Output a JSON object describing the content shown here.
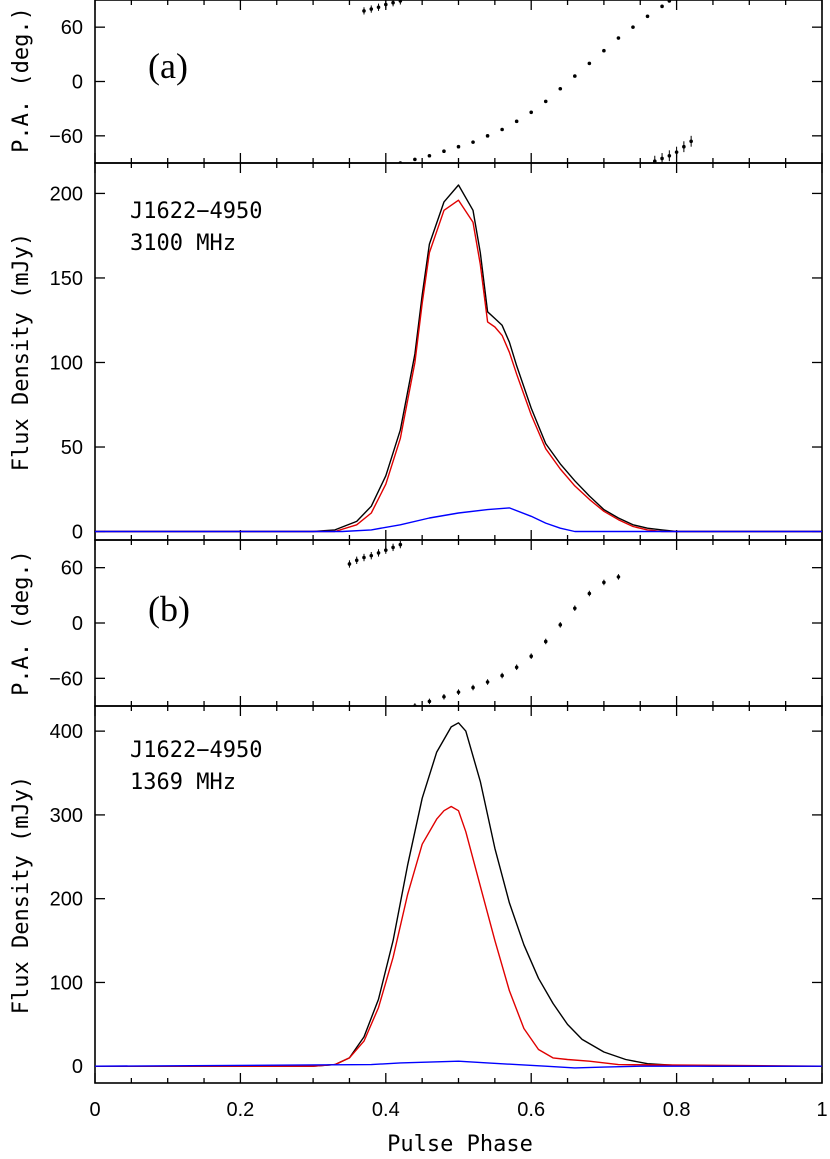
{
  "chart_data": [
    {
      "panel": "(a)",
      "type": "scatter",
      "label": "(a)",
      "ylabel": "P.A. (deg.)",
      "ylim": [
        -90,
        90
      ],
      "yticks": [
        -60,
        0,
        60
      ],
      "xlim": [
        0,
        1
      ],
      "series": [
        {
          "x": [
            0.37,
            0.38,
            0.39,
            0.4,
            0.41,
            0.42
          ],
          "y": [
            78,
            80,
            82,
            85,
            87,
            89
          ],
          "err": 4
        },
        {
          "x": [
            0.42,
            0.44,
            0.46,
            0.48,
            0.5,
            0.52,
            0.54,
            0.56,
            0.58,
            0.6,
            0.62,
            0.64,
            0.66,
            0.68,
            0.7,
            0.72,
            0.74,
            0.76,
            0.78,
            0.79
          ],
          "y": [
            -90,
            -86,
            -82,
            -77,
            -72,
            -67,
            -60,
            -53,
            -44,
            -34,
            -22,
            -8,
            6,
            20,
            34,
            48,
            60,
            72,
            83,
            89
          ],
          "err": 1.5
        },
        {
          "x": [
            0.77,
            0.78,
            0.79,
            0.8,
            0.81,
            0.82
          ],
          "y": [
            -88,
            -85,
            -82,
            -78,
            -72,
            -66
          ],
          "err": 6
        }
      ]
    },
    {
      "type": "line",
      "ylabel": "Flux Density (mJy)",
      "ylim": [
        -5,
        218
      ],
      "yticks": [
        0,
        50,
        100,
        150,
        200
      ],
      "xlim": [
        0,
        1
      ],
      "annotations": [
        "J1622−4950",
        "3100 MHz"
      ],
      "series": [
        {
          "color": "#000000",
          "x": [
            0,
            0.3,
            0.33,
            0.36,
            0.38,
            0.4,
            0.42,
            0.44,
            0.45,
            0.46,
            0.48,
            0.5,
            0.52,
            0.53,
            0.54,
            0.55,
            0.56,
            0.57,
            0.58,
            0.6,
            0.62,
            0.64,
            0.66,
            0.68,
            0.7,
            0.72,
            0.74,
            0.76,
            0.78,
            0.8,
            1.0
          ],
          "y": [
            0,
            0,
            1,
            6,
            15,
            33,
            60,
            105,
            140,
            170,
            195,
            205,
            190,
            165,
            130,
            126,
            122,
            112,
            98,
            73,
            52,
            40,
            30,
            21,
            13,
            8,
            4,
            2,
            1,
            0,
            0
          ]
        },
        {
          "color": "#e00000",
          "x": [
            0,
            0.3,
            0.33,
            0.36,
            0.38,
            0.4,
            0.42,
            0.44,
            0.45,
            0.46,
            0.48,
            0.5,
            0.52,
            0.53,
            0.54,
            0.55,
            0.56,
            0.57,
            0.58,
            0.6,
            0.62,
            0.64,
            0.66,
            0.68,
            0.7,
            0.72,
            0.74,
            0.76,
            0.78,
            0.8,
            1.0
          ],
          "y": [
            0,
            0,
            0,
            4,
            11,
            28,
            55,
            100,
            135,
            165,
            190,
            196,
            183,
            158,
            124,
            121,
            116,
            106,
            93,
            69,
            49,
            37,
            27,
            19,
            12,
            7,
            3,
            1,
            0,
            0,
            0
          ]
        },
        {
          "color": "#0000ff",
          "x": [
            0,
            0.34,
            0.38,
            0.42,
            0.46,
            0.5,
            0.54,
            0.57,
            0.6,
            0.62,
            0.64,
            0.66,
            0.7,
            1.0
          ],
          "y": [
            0,
            0,
            1,
            4,
            8,
            11,
            13,
            14,
            9,
            5,
            2,
            0,
            0,
            0
          ]
        }
      ]
    },
    {
      "panel": "(b)",
      "type": "scatter",
      "label": "(b)",
      "ylabel": "P.A. (deg.)",
      "ylim": [
        -90,
        90
      ],
      "yticks": [
        -60,
        0,
        60
      ],
      "xlim": [
        0,
        1
      ],
      "series": [
        {
          "x": [
            0.35,
            0.36,
            0.37,
            0.38,
            0.39,
            0.4,
            0.41,
            0.42
          ],
          "y": [
            64,
            68,
            71,
            73,
            76,
            79,
            82,
            85
          ],
          "err": 4
        },
        {
          "x": [
            0.44,
            0.46,
            0.48,
            0.5,
            0.52,
            0.54,
            0.56,
            0.58,
            0.6,
            0.62,
            0.64,
            0.66,
            0.68,
            0.7,
            0.72
          ],
          "y": [
            -90,
            -85,
            -80,
            -75,
            -70,
            -64,
            -57,
            -48,
            -36,
            -20,
            -2,
            16,
            32,
            44,
            50
          ],
          "err": 3
        }
      ]
    },
    {
      "type": "line",
      "ylabel": "Flux Density (mJy)",
      "xlabel": "Pulse Phase",
      "ylim": [
        -20,
        430
      ],
      "yticks": [
        0,
        100,
        200,
        300,
        400
      ],
      "xlim": [
        0,
        1
      ],
      "xticks": [
        "0",
        "0.2",
        "0.4",
        "0.6",
        "0.8",
        "1"
      ],
      "annotations": [
        "J1622−4950",
        "1369 MHz"
      ],
      "series": [
        {
          "color": "#000000",
          "x": [
            0,
            0.3,
            0.33,
            0.35,
            0.37,
            0.39,
            0.41,
            0.43,
            0.45,
            0.47,
            0.49,
            0.5,
            0.51,
            0.53,
            0.55,
            0.57,
            0.59,
            0.61,
            0.63,
            0.65,
            0.67,
            0.7,
            0.73,
            0.76,
            0.8,
            0.85,
            1.0
          ],
          "y": [
            0,
            0,
            2,
            10,
            35,
            80,
            150,
            240,
            320,
            375,
            405,
            410,
            400,
            340,
            260,
            195,
            145,
            105,
            75,
            50,
            32,
            17,
            8,
            3,
            1,
            0,
            0
          ]
        },
        {
          "color": "#e00000",
          "x": [
            0,
            0.3,
            0.33,
            0.35,
            0.37,
            0.39,
            0.41,
            0.43,
            0.45,
            0.47,
            0.48,
            0.49,
            0.5,
            0.51,
            0.53,
            0.55,
            0.57,
            0.59,
            0.61,
            0.63,
            0.65,
            0.68,
            0.72,
            1.0
          ],
          "y": [
            0,
            0,
            2,
            10,
            30,
            70,
            130,
            205,
            265,
            295,
            305,
            310,
            305,
            280,
            215,
            150,
            90,
            45,
            20,
            10,
            8,
            6,
            2,
            0
          ]
        },
        {
          "color": "#0000ff",
          "x": [
            0,
            0.38,
            0.42,
            0.46,
            0.5,
            0.54,
            0.58,
            0.62,
            0.66,
            0.7,
            0.75,
            1.0
          ],
          "y": [
            0,
            2,
            4,
            5,
            6,
            4,
            2,
            0,
            -2,
            -1,
            0,
            0
          ]
        }
      ]
    }
  ]
}
